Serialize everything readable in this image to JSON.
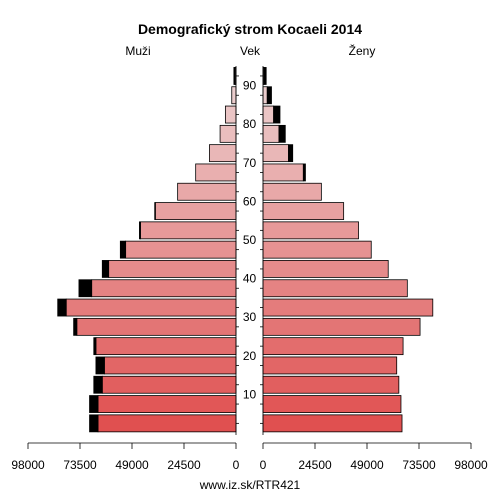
{
  "chart_data": {
    "type": "bar",
    "title": "Demografický strom Kocaeli 2014",
    "left_label": "Muži",
    "center_label": "Vek",
    "right_label": "Ženy",
    "footer": "www.iz.sk/RTR421",
    "age_ticks": [
      "10",
      "20",
      "30",
      "40",
      "50",
      "60",
      "70",
      "80",
      "90"
    ],
    "x_ticks_left": [
      "98000",
      "73500",
      "49000",
      "24500",
      "0"
    ],
    "x_ticks_right": [
      "0",
      "24500",
      "49000",
      "73500",
      "98000"
    ],
    "xlim": [
      0,
      98000
    ],
    "categories": [
      "0-4",
      "5-9",
      "10-14",
      "15-19",
      "20-24",
      "25-29",
      "30-34",
      "35-39",
      "40-44",
      "45-49",
      "50-54",
      "55-59",
      "60-64",
      "65-69",
      "70-74",
      "75-79",
      "80-84",
      "85-89",
      "90+"
    ],
    "series": [
      {
        "group": "male_base",
        "values": [
          65000,
          65000,
          63000,
          62000,
          66000,
          75000,
          80000,
          68000,
          60000,
          52000,
          45000,
          38000,
          27500,
          19000,
          12500,
          7500,
          5000,
          2000,
          500
        ]
      },
      {
        "group": "male_black",
        "values": [
          4000,
          4000,
          4000,
          4000,
          1000,
          1500,
          4000,
          6000,
          3000,
          2500,
          500,
          300,
          0,
          0,
          0,
          0,
          0,
          0,
          500
        ]
      },
      {
        "group": "female_base",
        "values": [
          65500,
          65000,
          64000,
          63000,
          66000,
          74000,
          80000,
          68000,
          59000,
          51000,
          45000,
          38000,
          27500,
          19000,
          12000,
          7500,
          5000,
          2000,
          500
        ]
      },
      {
        "group": "female_black",
        "values": [
          0,
          0,
          0,
          0,
          0,
          0,
          0,
          0,
          0,
          0,
          0,
          0,
          0,
          1000,
          2000,
          3000,
          3000,
          2000,
          1000
        ]
      }
    ],
    "colors": {
      "bar_young": "#e05050",
      "bar_old": "#ecd4d4",
      "excess": "#000000",
      "outline": "#000000"
    }
  }
}
